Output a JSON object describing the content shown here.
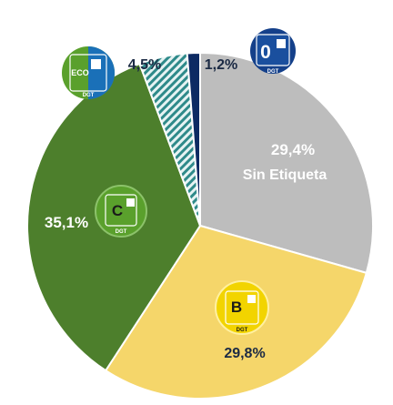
{
  "chart_data": {
    "type": "pie",
    "slices": [
      {
        "label": "Sin Etiqueta",
        "display": "29,4%",
        "value": 29.4,
        "color": "#bdbdbd"
      },
      {
        "label": "B",
        "display": "29,8%",
        "value": 29.8,
        "color": "#f5d66a"
      },
      {
        "label": "C",
        "display": "35,1%",
        "value": 35.1,
        "color": "#4d7f2c"
      },
      {
        "label": "ECO",
        "display": "4,5%",
        "value": 4.5,
        "color": "#2e8a8a"
      },
      {
        "label": "0",
        "display": "1,2%",
        "value": 1.2,
        "color": "#0d2a63"
      }
    ],
    "start_angle_deg": 0,
    "direction": "clockwise",
    "legend": "none"
  },
  "badges": {
    "zero": {
      "letter": "0",
      "brand": "DGT"
    },
    "eco": {
      "letter": "ECO",
      "brand": "DGT"
    },
    "c": {
      "letter": "C",
      "brand": "DGT"
    },
    "b": {
      "letter": "B",
      "brand": "DGT"
    }
  },
  "colors": {
    "zero_badge": "#14408a",
    "eco_badge_green": "#5aa02c",
    "eco_badge_blue": "#1a70b8",
    "c_badge": "#5aa02c",
    "b_badge": "#f2d400",
    "dark_text": "#1b2a44"
  }
}
